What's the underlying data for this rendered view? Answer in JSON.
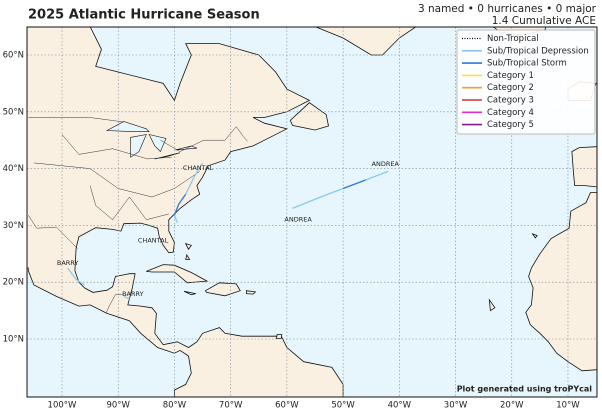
{
  "title": "2025 Atlantic Hurricane Season",
  "summary": [
    "3 named • 0 hurricanes • 0 major",
    "1.4 Cumulative ACE"
  ],
  "legend": {
    "items": [
      {
        "label": "Non-Tropical",
        "color": "#000000",
        "style": "dotted"
      },
      {
        "label": "Sub/Tropical Depression",
        "color": "#8ac8f0",
        "style": "solid"
      },
      {
        "label": "Sub/Tropical Storm",
        "color": "#2a78d8",
        "style": "solid"
      },
      {
        "label": "Category 1",
        "color": "#f5e14a",
        "style": "solid"
      },
      {
        "label": "Category 2",
        "color": "#f0a030",
        "style": "solid"
      },
      {
        "label": "Category 3",
        "color": "#d83030",
        "style": "solid"
      },
      {
        "label": "Category 4",
        "color": "#e030d0",
        "style": "solid"
      },
      {
        "label": "Category 5",
        "color": "#8a1a8a",
        "style": "solid"
      }
    ]
  },
  "storm_labels": [
    "ANDREA",
    "ANDREA",
    "CHANTAL",
    "CHANTAL",
    "BARRY",
    "BARRY"
  ],
  "lat_labels": [
    "60°N",
    "50°N",
    "40°N",
    "30°N",
    "20°N",
    "10°N"
  ],
  "lon_labels": [
    "100°W",
    "90°W",
    "80°W",
    "70°W",
    "60°W",
    "50°W",
    "40°W",
    "30°W",
    "20°W",
    "10°W"
  ],
  "credit": "Plot generated using troPYcal"
}
